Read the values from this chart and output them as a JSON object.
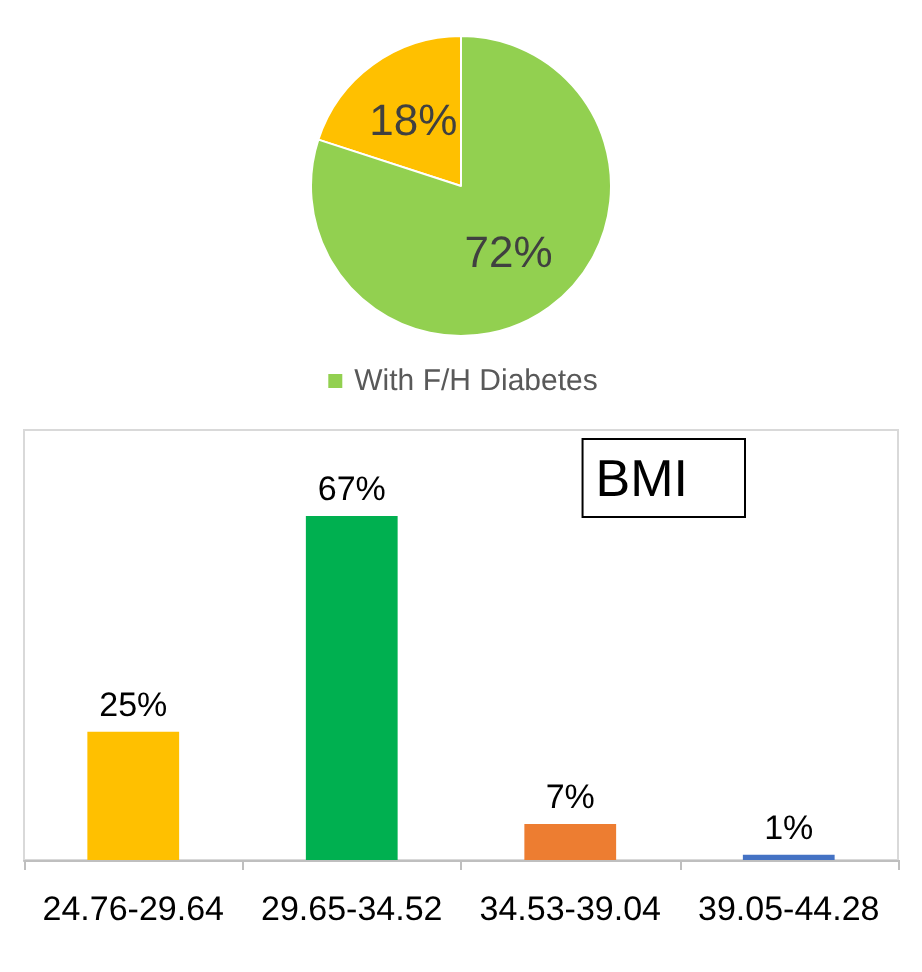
{
  "chart_data": [
    {
      "type": "pie",
      "categories": [
        null,
        "With F/H Diabetes"
      ],
      "values": [
        18,
        72
      ],
      "colors": [
        "#ffc000",
        "#92d050"
      ],
      "value_labels": [
        "18%",
        "72%"
      ],
      "legend": "bottom"
    },
    {
      "type": "bar",
      "categories": [
        "24.76-29.64",
        "29.65-34.52",
        "34.53-39.04",
        "39.05-44.28"
      ],
      "values": [
        25,
        67,
        7,
        1
      ],
      "colors": [
        "#ffc000",
        "#00b050",
        "#ed7d31",
        "#4472c4"
      ],
      "value_labels": [
        "25%",
        "67%",
        "7%",
        "1%"
      ],
      "annotations": [
        "BMI"
      ]
    }
  ]
}
